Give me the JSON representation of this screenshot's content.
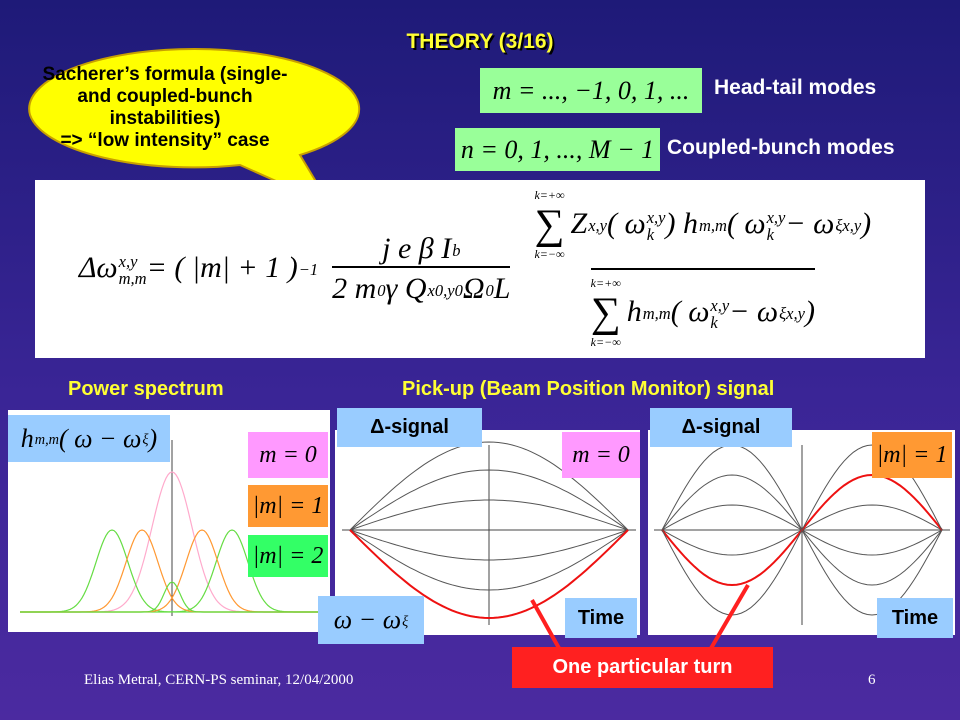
{
  "title": "THEORY (3/16)",
  "callout": [
    "Sacherer’s formula (single-",
    "and coupled-bunch instabilities)",
    "=> “low intensity” case"
  ],
  "modes": [
    {
      "formula": [
        {
          "t": "m = ..., −1, 0, 1, ..."
        }
      ],
      "label": "Head-tail modes"
    },
    {
      "formula": [
        {
          "t": "n = 0, 1, ..., M − 1"
        }
      ],
      "label": "Coupled-bunch modes"
    }
  ],
  "formula": {
    "lhs": [
      {
        "t": "Δω",
        "sub": "m,m",
        "sup": "x,y"
      },
      {
        "t": " = ( |m| + 1 )",
        "sup": "−1"
      }
    ],
    "frac1_num": [
      {
        "t": "j e β I",
        "sub": "b"
      }
    ],
    "frac1_den": [
      {
        "t": "2 m",
        "sub": "0"
      },
      {
        "t": " γ Q",
        "sub": "x0,y0"
      },
      {
        "t": " Ω",
        "sub": "0"
      },
      {
        "t": " L"
      }
    ],
    "sum_top": "k=+∞",
    "sum_bottom": "k=−∞",
    "frac2_num": [
      {
        "t": "Z",
        "sub": "x,y"
      },
      {
        "t": "( ω",
        "sub": "k",
        "sup": "x,y"
      },
      {
        "t": " ) h",
        "sub": "m,m"
      },
      {
        "t": "( ω",
        "sub": "k",
        "sup": "x,y"
      },
      {
        "t": " − ω",
        "sub": "ξx,y"
      },
      {
        "t": " )"
      }
    ],
    "frac2_den": [
      {
        "t": "h",
        "sub": "m,m"
      },
      {
        "t": "( ω",
        "sub": "k",
        "sup": "x,y"
      },
      {
        "t": " − ω",
        "sub": "ξx,y"
      },
      {
        "t": " )"
      }
    ]
  },
  "sections": {
    "power": "Power spectrum",
    "pickup": "Pick-up (Beam Position Monitor) signal"
  },
  "power_plot": {
    "function": [
      {
        "t": "h",
        "sub": "m,m"
      },
      {
        "t": "( ω − ω",
        "sub": "ξ"
      },
      {
        "t": " )"
      }
    ],
    "legend": [
      "m = 0",
      "|m| = 1",
      "|m| = 2"
    ],
    "x_label": [
      {
        "t": "ω − ω",
        "sub": "ξ"
      }
    ]
  },
  "signal_plots": [
    {
      "header": "Δ-signal",
      "mode": "m = 0",
      "x_label": "Time"
    },
    {
      "header": "Δ-signal",
      "mode": "|m| = 1",
      "x_label": "Time"
    }
  ],
  "annotation": "One particular turn",
  "footer": {
    "author": "Elias Metral, CERN-PS seminar, 12/04/2000",
    "page": "6"
  }
}
